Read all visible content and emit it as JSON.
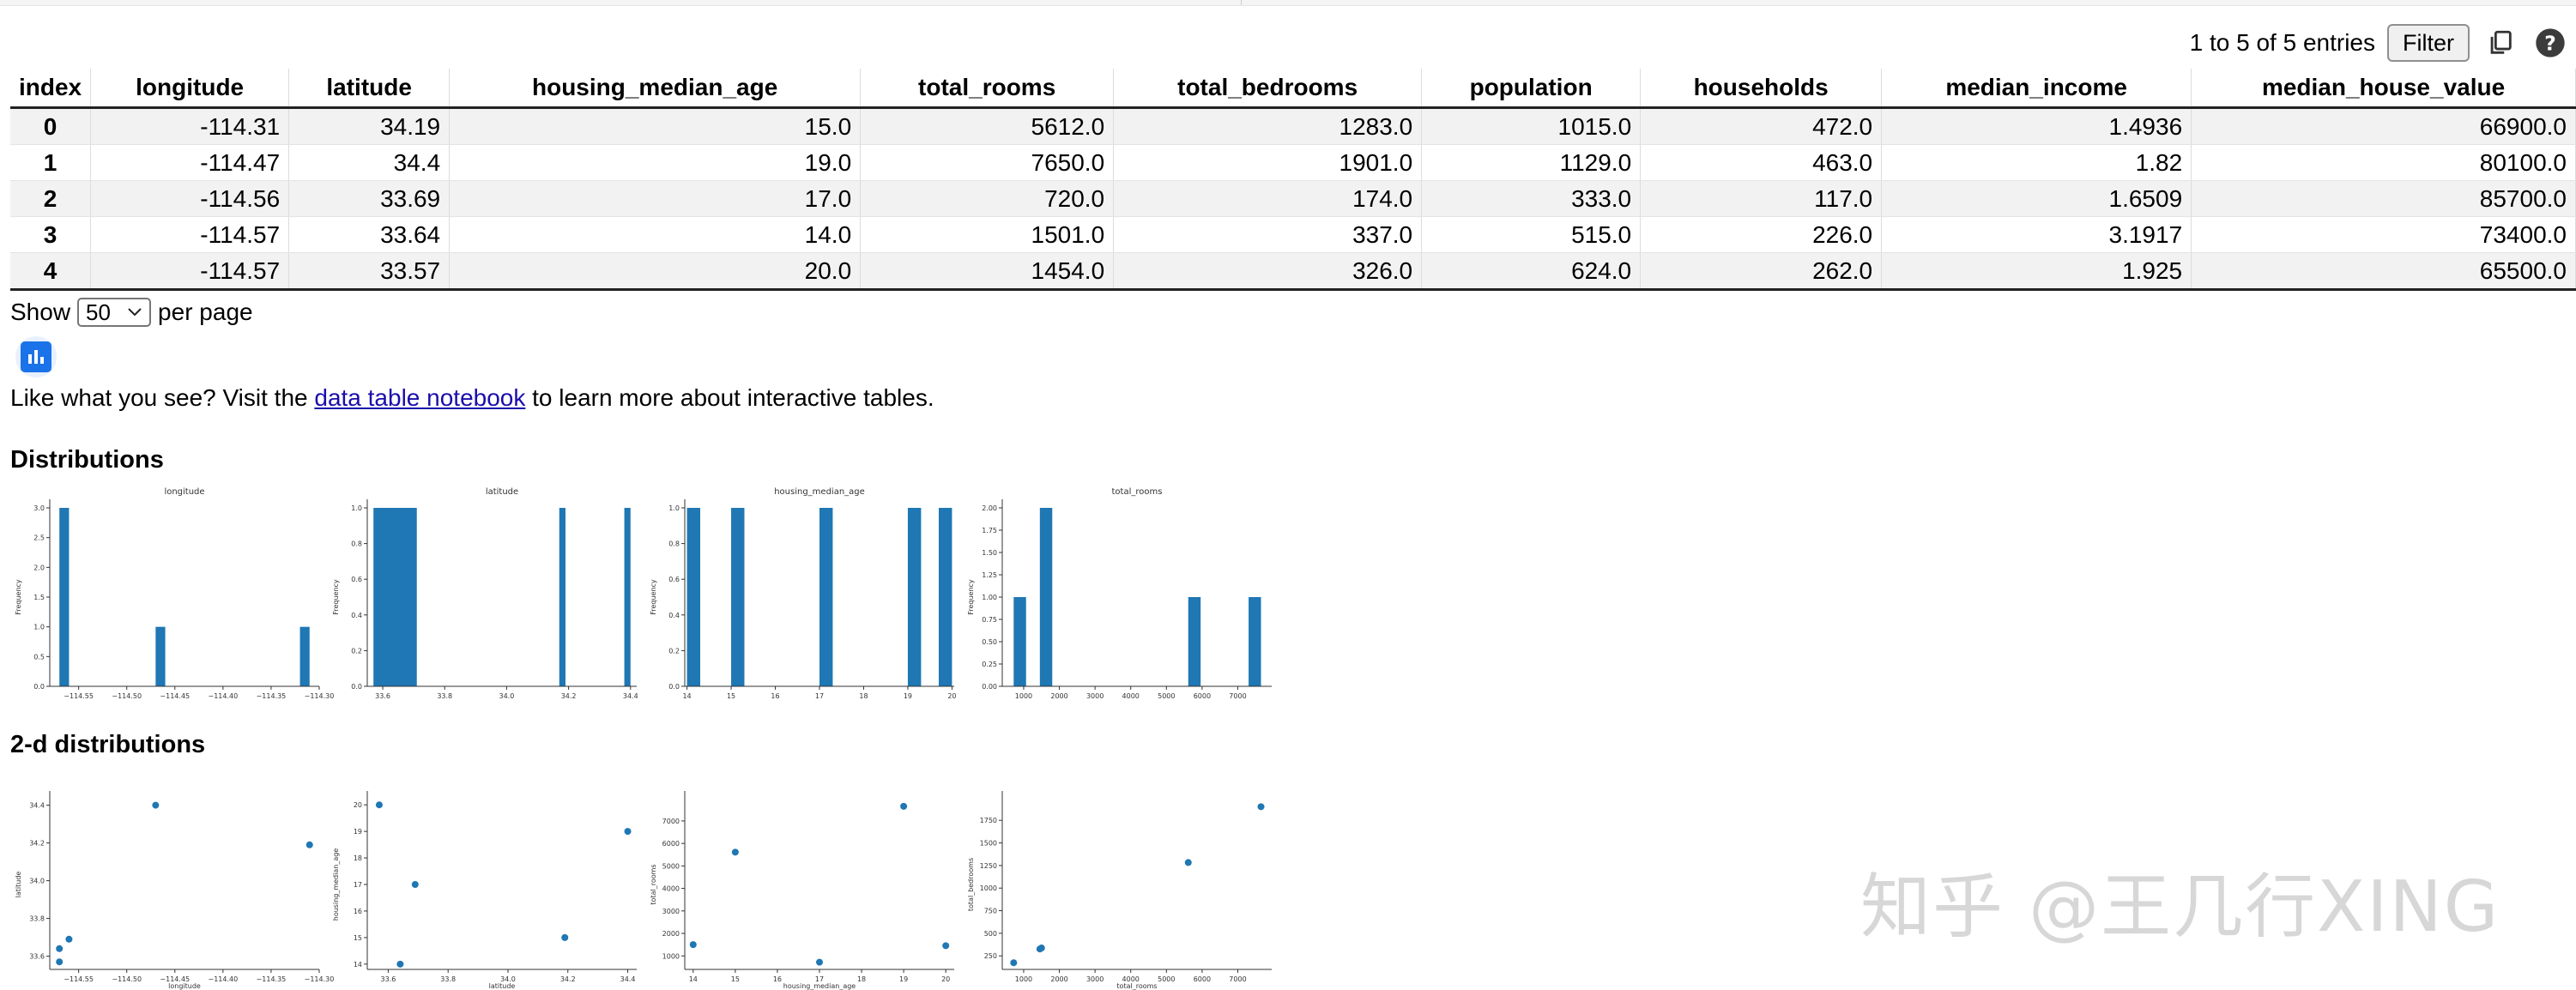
{
  "toolbar": {
    "entries_text": "1 to 5 of 5 entries",
    "filter_label": "Filter"
  },
  "table": {
    "columns": [
      "index",
      "longitude",
      "latitude",
      "housing_median_age",
      "total_rooms",
      "total_bedrooms",
      "population",
      "households",
      "median_income",
      "median_house_value"
    ],
    "rows": [
      [
        "0",
        "-114.31",
        "34.19",
        "15.0",
        "5612.0",
        "1283.0",
        "1015.0",
        "472.0",
        "1.4936",
        "66900.0"
      ],
      [
        "1",
        "-114.47",
        "34.4",
        "19.0",
        "7650.0",
        "1901.0",
        "1129.0",
        "463.0",
        "1.82",
        "80100.0"
      ],
      [
        "2",
        "-114.56",
        "33.69",
        "17.0",
        "720.0",
        "174.0",
        "333.0",
        "117.0",
        "1.6509",
        "85700.0"
      ],
      [
        "3",
        "-114.57",
        "33.64",
        "14.0",
        "1501.0",
        "337.0",
        "515.0",
        "226.0",
        "3.1917",
        "73400.0"
      ],
      [
        "4",
        "-114.57",
        "33.57",
        "20.0",
        "1454.0",
        "326.0",
        "624.0",
        "262.0",
        "1.925",
        "65500.0"
      ]
    ]
  },
  "pagination": {
    "show_label": "Show",
    "per_page_value": "50",
    "per_page_label": "per page"
  },
  "promo": {
    "prefix": "Like what you see? Visit the ",
    "link_text": "data table notebook",
    "suffix": " to learn more about interactive tables."
  },
  "sections": {
    "distributions": "Distributions",
    "distributions_2d": "2-d distributions"
  },
  "watermark": "知乎 @王几行XING",
  "colors": {
    "bar": "#1f77b4",
    "link": "#1a0dab",
    "chart_button": "#1a73e8"
  },
  "icons": {
    "copy": "copy-icon",
    "help": "help-icon",
    "chart": "bar-chart-icon",
    "dropdown": "chevron-down-icon"
  },
  "chart_data": [
    {
      "type": "bar",
      "title": "longitude",
      "ylabel": "Frequency",
      "bins": [
        [
          -114.57,
          -114.56,
          3
        ],
        [
          -114.47,
          -114.46,
          1
        ],
        [
          -114.32,
          -114.31,
          1
        ]
      ],
      "xlim": [
        -114.58,
        -114.3
      ],
      "ylim": [
        0,
        3
      ],
      "xticks": [
        -114.55,
        -114.5,
        -114.45,
        -114.4,
        -114.35,
        -114.3
      ],
      "xtick_labels": [
        "−114.55",
        "−114.50",
        "−114.45",
        "−114.40",
        "−114.35",
        "−114.30"
      ],
      "yticks": [
        0,
        0.5,
        1.0,
        1.5,
        2.0,
        2.5,
        3.0
      ],
      "ytick_labels": [
        "0.0",
        "0.5",
        "1.0",
        "1.5",
        "2.0",
        "2.5",
        "3.0"
      ]
    },
    {
      "type": "bar",
      "title": "latitude",
      "ylabel": "Frequency",
      "bins": [
        [
          33.57,
          33.64,
          1
        ],
        [
          33.64,
          33.71,
          1
        ],
        [
          34.17,
          34.19,
          1
        ],
        [
          34.38,
          34.4,
          1
        ]
      ],
      "xlim": [
        33.55,
        34.42
      ],
      "ylim": [
        0,
        1
      ],
      "xticks": [
        33.6,
        33.8,
        34.0,
        34.2,
        34.4
      ],
      "xtick_labels": [
        "33.6",
        "33.8",
        "34.0",
        "34.2",
        "34.4"
      ],
      "yticks": [
        0,
        0.2,
        0.4,
        0.6,
        0.8,
        1.0
      ],
      "ytick_labels": [
        "0.0",
        "0.2",
        "0.4",
        "0.6",
        "0.8",
        "1.0"
      ]
    },
    {
      "type": "bar",
      "title": "housing_median_age",
      "ylabel": "Frequency",
      "bins": [
        [
          14.0,
          14.3,
          1
        ],
        [
          15.0,
          15.3,
          1
        ],
        [
          17.0,
          17.3,
          1
        ],
        [
          19.0,
          19.3,
          1
        ],
        [
          19.7,
          20.0,
          1
        ]
      ],
      "xlim": [
        13.95,
        20.05
      ],
      "ylim": [
        0,
        1
      ],
      "xticks": [
        14,
        15,
        16,
        17,
        18,
        19,
        20
      ],
      "xtick_labels": [
        "14",
        "15",
        "16",
        "17",
        "18",
        "19",
        "20"
      ],
      "yticks": [
        0,
        0.2,
        0.4,
        0.6,
        0.8,
        1.0
      ],
      "ytick_labels": [
        "0.0",
        "0.2",
        "0.4",
        "0.6",
        "0.8",
        "1.0"
      ]
    },
    {
      "type": "bar",
      "title": "total_rooms",
      "ylabel": "Frequency",
      "bins": [
        [
          720,
          1067,
          1
        ],
        [
          1454,
          1801,
          2
        ],
        [
          5612,
          5959,
          1
        ],
        [
          7303,
          7650,
          1
        ]
      ],
      "xlim": [
        400,
        7950
      ],
      "ylim": [
        0,
        2
      ],
      "xticks": [
        1000,
        2000,
        3000,
        4000,
        5000,
        6000,
        7000
      ],
      "xtick_labels": [
        "1000",
        "2000",
        "3000",
        "4000",
        "5000",
        "6000",
        "7000"
      ],
      "yticks": [
        0,
        0.25,
        0.5,
        0.75,
        1.0,
        1.25,
        1.5,
        1.75,
        2.0
      ],
      "ytick_labels": [
        "0.00",
        "0.25",
        "0.50",
        "0.75",
        "1.00",
        "1.25",
        "1.50",
        "1.75",
        "2.00"
      ]
    },
    {
      "type": "scatter",
      "xlabel": "longitude",
      "ylabel": "latitude",
      "points": [
        [
          -114.31,
          34.19
        ],
        [
          -114.47,
          34.4
        ],
        [
          -114.56,
          33.69
        ],
        [
          -114.57,
          33.64
        ],
        [
          -114.57,
          33.57
        ]
      ],
      "xlim": [
        -114.58,
        -114.3
      ],
      "ylim": [
        33.53,
        34.43
      ],
      "xticks": [
        -114.55,
        -114.5,
        -114.45,
        -114.4,
        -114.35,
        -114.3
      ],
      "xtick_labels": [
        "−114.55",
        "−114.50",
        "−114.45",
        "−114.40",
        "−114.35",
        "−114.30"
      ],
      "yticks": [
        33.6,
        33.8,
        34.0,
        34.2,
        34.4
      ],
      "ytick_labels": [
        "33.6",
        "33.8",
        "34.0",
        "34.2",
        "34.4"
      ]
    },
    {
      "type": "scatter",
      "xlabel": "latitude",
      "ylabel": "housing_median_age",
      "points": [
        [
          34.19,
          15
        ],
        [
          34.4,
          19
        ],
        [
          33.69,
          17
        ],
        [
          33.64,
          14
        ],
        [
          33.57,
          20
        ]
      ],
      "xlim": [
        33.53,
        34.43
      ],
      "ylim": [
        13.8,
        20.2
      ],
      "xticks": [
        33.6,
        33.8,
        34.0,
        34.2,
        34.4
      ],
      "xtick_labels": [
        "33.6",
        "33.8",
        "34.0",
        "34.2",
        "34.4"
      ],
      "yticks": [
        14,
        15,
        16,
        17,
        18,
        19,
        20
      ],
      "ytick_labels": [
        "14",
        "15",
        "16",
        "17",
        "18",
        "19",
        "20"
      ]
    },
    {
      "type": "scatter",
      "xlabel": "housing_median_age",
      "ylabel": "total_rooms",
      "points": [
        [
          15,
          5612
        ],
        [
          19,
          7650
        ],
        [
          17,
          720
        ],
        [
          14,
          1501
        ],
        [
          20,
          1454
        ]
      ],
      "xlim": [
        13.8,
        20.2
      ],
      "ylim": [
        400,
        7950
      ],
      "xticks": [
        14,
        15,
        16,
        17,
        18,
        19,
        20
      ],
      "xtick_labels": [
        "14",
        "15",
        "16",
        "17",
        "18",
        "19",
        "20"
      ],
      "yticks": [
        1000,
        2000,
        3000,
        4000,
        5000,
        6000,
        7000
      ],
      "ytick_labels": [
        "1000",
        "2000",
        "3000",
        "4000",
        "5000",
        "6000",
        "7000"
      ]
    },
    {
      "type": "scatter",
      "xlabel": "total_rooms",
      "ylabel": "total_bedrooms",
      "points": [
        [
          5612,
          1283
        ],
        [
          7650,
          1901
        ],
        [
          720,
          174
        ],
        [
          1501,
          337
        ],
        [
          1454,
          326
        ]
      ],
      "xlim": [
        400,
        7950
      ],
      "ylim": [
        100,
        1980
      ],
      "xticks": [
        1000,
        2000,
        3000,
        4000,
        5000,
        6000,
        7000
      ],
      "xtick_labels": [
        "1000",
        "2000",
        "3000",
        "4000",
        "5000",
        "6000",
        "7000"
      ],
      "yticks": [
        250,
        500,
        750,
        1000,
        1250,
        1500,
        1750
      ],
      "ytick_labels": [
        "250",
        "500",
        "750",
        "1000",
        "1250",
        "1500",
        "1750"
      ]
    }
  ]
}
